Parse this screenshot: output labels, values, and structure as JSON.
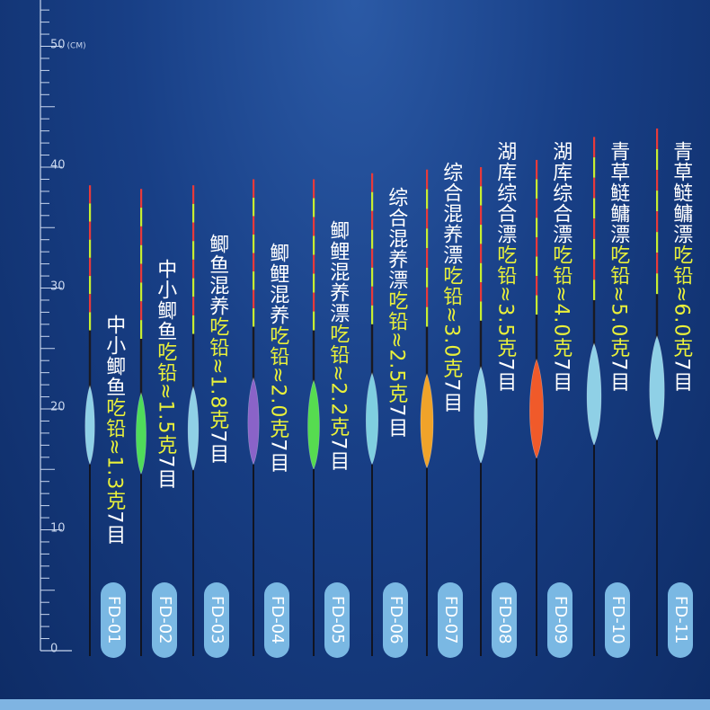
{
  "ruler": {
    "labels": [
      {
        "value": 50,
        "text": "50",
        "unit": "(CM)"
      },
      {
        "value": 40,
        "text": "40",
        "unit": ""
      },
      {
        "value": 30,
        "text": "30",
        "unit": ""
      },
      {
        "value": 20,
        "text": "20",
        "unit": ""
      },
      {
        "value": 10,
        "text": "10",
        "unit": ""
      },
      {
        "value": 0,
        "text": "0",
        "unit": ""
      }
    ]
  },
  "floats": [
    {
      "model": "FD-01",
      "name": "中小鲫鱼",
      "lead": "吃铅≈1.3克",
      "mesh": "7目",
      "body_color": "#8fd0e6",
      "top_cm": 38.5,
      "body_cm": 18.5,
      "tail_cm": 0
    },
    {
      "model": "FD-02",
      "name": "中小鲫鱼",
      "lead": "吃铅≈1.5克",
      "mesh": "7目",
      "body_color": "#4fdc5a",
      "top_cm": 38.2,
      "body_cm": 17.8,
      "tail_cm": 0
    },
    {
      "model": "FD-03",
      "name": "鲫鱼混养",
      "lead": "吃铅≈1.8克",
      "mesh": "7目",
      "body_color": "#8fd0e6",
      "top_cm": 38.5,
      "body_cm": 18.2,
      "tail_cm": 0
    },
    {
      "model": "FD-04",
      "name": "鲫鲤混养",
      "lead": "吃铅≈2.0克",
      "mesh": "7目",
      "body_color": "#8a63c8",
      "top_cm": 39.0,
      "body_cm": 18.8,
      "tail_cm": 0
    },
    {
      "model": "FD-05",
      "name": "鲫鲤混养漂",
      "lead": "吃铅≈2.2克",
      "mesh": "7目",
      "body_color": "#56dc50",
      "top_cm": 39.0,
      "body_cm": 18.5,
      "tail_cm": 0
    },
    {
      "model": "FD-06",
      "name": "综合混养漂",
      "lead": "吃铅≈2.5克",
      "mesh": "7目",
      "body_color": "#7fcfe0",
      "top_cm": 39.5,
      "body_cm": 19.0,
      "tail_cm": 0
    },
    {
      "model": "FD-07",
      "name": "综合混养漂",
      "lead": "吃铅≈3.0克",
      "mesh": "7目",
      "body_color": "#f0a32a",
      "top_cm": 39.8,
      "body_cm": 18.8,
      "tail_cm": 0
    },
    {
      "model": "FD-08",
      "name": "湖库综合漂",
      "lead": "吃铅≈3.5克",
      "mesh": "7目",
      "body_color": "#8fd0e6",
      "top_cm": 40.0,
      "body_cm": 19.3,
      "tail_cm": 0
    },
    {
      "model": "FD-09",
      "name": "湖库综合漂",
      "lead": "吃铅≈4.0克",
      "mesh": "7目",
      "body_color": "#f05a2a",
      "top_cm": 40.6,
      "body_cm": 19.8,
      "tail_cm": 0
    },
    {
      "model": "FD-10",
      "name": "青草鲢鳙漂",
      "lead": "吃铅≈5.0克",
      "mesh": "7目",
      "body_color": "#8fd0e6",
      "top_cm": 42.5,
      "body_cm": 21.0,
      "tail_cm": 0
    },
    {
      "model": "FD-11",
      "name": "青草鲢鳙漂",
      "lead": "吃铅≈6.0克",
      "mesh": "7目",
      "body_color": "#8fd0e6",
      "top_cm": 43.2,
      "body_cm": 21.5,
      "tail_cm": 0
    }
  ],
  "colors": {
    "background": "#183f86",
    "badge": "#7ab8e3",
    "lead_text": "#e9f03a",
    "tip_red": "#e83a3a",
    "tip_green": "#c8ee30"
  }
}
